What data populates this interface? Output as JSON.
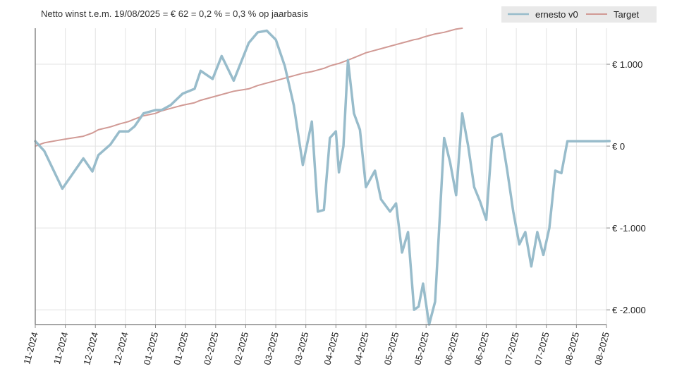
{
  "chart_data": {
    "type": "line",
    "title": "Netto winst t.e.m. 19/08/2025 = € 62 = 0,2 % = 0,3 % op jaarbasis",
    "xlabel": "",
    "ylabel": "",
    "ylim": [
      -2180,
      1440
    ],
    "y_ticks": [
      1000,
      0,
      -1000,
      -2000
    ],
    "y_tick_labels": [
      "€ 1.000",
      "€ 0",
      "€ -1.000",
      "€ -2.000"
    ],
    "x_tick_labels": [
      "11-2024",
      "11-2024",
      "12-2024",
      "12-2024",
      "01-2025",
      "01-2025",
      "02-2025",
      "02-2025",
      "03-2025",
      "03-2025",
      "04-2025",
      "04-2025",
      "05-2025",
      "05-2025",
      "06-2025",
      "06-2025",
      "07-2025",
      "07-2025",
      "08-2025",
      "08-2025"
    ],
    "grid": true,
    "legend_position": "top-right",
    "x_points": [
      0,
      0.3,
      0.9,
      1.6,
      1.9,
      2.1,
      2.5,
      2.8,
      3.1,
      3.3,
      3.6,
      4.0,
      4.2,
      4.5,
      4.9,
      5.3,
      5.5,
      5.9,
      6.2,
      6.6,
      7.1,
      7.4,
      7.7,
      8.0,
      8.3,
      8.6,
      8.9,
      9.2,
      9.4,
      9.6,
      9.8,
      10.0,
      10.1,
      10.25,
      10.4,
      10.6,
      10.8,
      11.0,
      11.3,
      11.5,
      11.8,
      12.0,
      12.2,
      12.4,
      12.6,
      12.75,
      12.9,
      13.1,
      13.3,
      13.6,
      13.8,
      14.0,
      14.2,
      14.4,
      14.6,
      14.8,
      15.0,
      15.2,
      15.5,
      15.7,
      15.9,
      16.1,
      16.3,
      16.5,
      16.7,
      16.9,
      17.1,
      17.3,
      17.5,
      17.7,
      17.9,
      18.1,
      18.3,
      18.5,
      18.7,
      18.9,
      19.1
    ],
    "series": [
      {
        "name": "ernesto v0",
        "color": "#98bccb",
        "values": [
          60,
          -60,
          -520,
          -150,
          -310,
          -110,
          20,
          180,
          180,
          240,
          400,
          440,
          440,
          500,
          640,
          700,
          920,
          820,
          1100,
          800,
          1260,
          1390,
          1410,
          1300,
          980,
          500,
          -230,
          300,
          -800,
          -780,
          100,
          180,
          -320,
          0,
          1050,
          400,
          200,
          -500,
          -300,
          -650,
          -800,
          -700,
          -1300,
          -1050,
          -2000,
          -1960,
          -1680,
          -2180,
          -1900,
          100,
          -200,
          -600,
          400,
          0,
          -500,
          -680,
          -900,
          100,
          150,
          -300,
          -800,
          -1200,
          -1050,
          -1470,
          -1050,
          -1330,
          -1000,
          -300,
          -330,
          60,
          60,
          60,
          60,
          60,
          60,
          60,
          62
        ],
        "smooth_note": ""
      },
      {
        "name": "Target",
        "color": "#d19a95",
        "values": [
          0,
          40,
          80,
          120,
          160,
          200,
          235,
          270,
          300,
          330,
          370,
          400,
          430,
          460,
          500,
          530,
          560,
          600,
          630,
          670,
          700,
          740,
          770,
          800,
          830,
          860,
          890,
          910,
          930,
          950,
          980,
          1000,
          1010,
          1030,
          1050,
          1080,
          1110,
          1140,
          1170,
          1190,
          1220,
          1240,
          1260,
          1280,
          1300,
          1310,
          1330,
          1350,
          1370,
          1390,
          1410,
          1430,
          1440,
          null,
          null,
          null,
          null,
          null,
          null,
          null,
          null,
          null,
          null,
          null,
          null,
          null,
          null,
          null,
          null,
          null,
          null,
          null,
          null,
          null,
          null,
          null,
          null
        ]
      }
    ]
  },
  "legend": {
    "items": [
      {
        "label": "ernesto v0",
        "color": "#98bccb"
      },
      {
        "label": "Target",
        "color": "#d19a95"
      }
    ]
  }
}
